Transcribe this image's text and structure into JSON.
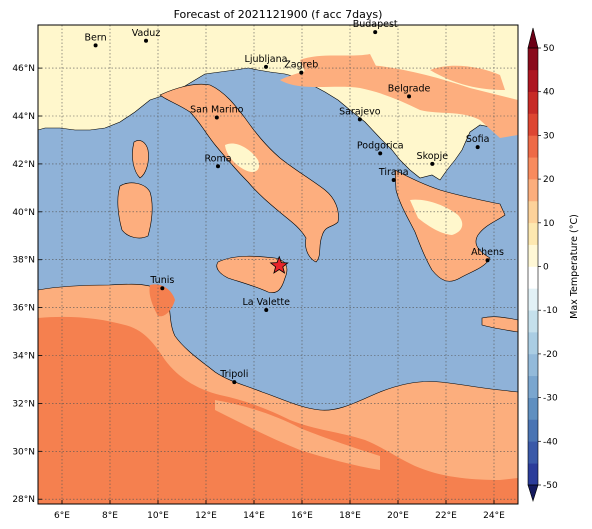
{
  "title": "Forecast of 2021121900 (f acc 7days)",
  "map": {
    "lon_range": [
      5,
      25
    ],
    "lat_range": [
      27.8,
      47.8
    ],
    "lon_ticks": [
      {
        "value": 6,
        "label": "6°E"
      },
      {
        "value": 8,
        "label": "8°E"
      },
      {
        "value": 10,
        "label": "10°E"
      },
      {
        "value": 12,
        "label": "12°E"
      },
      {
        "value": 14,
        "label": "14°E"
      },
      {
        "value": 16,
        "label": "16°E"
      },
      {
        "value": 18,
        "label": "18°E"
      },
      {
        "value": 20,
        "label": "20°E"
      },
      {
        "value": 22,
        "label": "22°E"
      },
      {
        "value": 24,
        "label": "24°E"
      }
    ],
    "lat_ticks": [
      {
        "value": 28,
        "label": "28°N"
      },
      {
        "value": 30,
        "label": "30°N"
      },
      {
        "value": 32,
        "label": "32°N"
      },
      {
        "value": 34,
        "label": "34°N"
      },
      {
        "value": 36,
        "label": "36°N"
      },
      {
        "value": 38,
        "label": "38°N"
      },
      {
        "value": 40,
        "label": "40°N"
      },
      {
        "value": 42,
        "label": "42°N"
      },
      {
        "value": 44,
        "label": "44°N"
      },
      {
        "value": 46,
        "label": "46°N"
      }
    ],
    "grid": true,
    "sea_color": "#8fb2d8",
    "cities": [
      {
        "name": "Bern",
        "lon": 7.4,
        "lat": 46.95
      },
      {
        "name": "Vaduz",
        "lon": 9.5,
        "lat": 47.14
      },
      {
        "name": "Budapest",
        "lon": 19.05,
        "lat": 47.5
      },
      {
        "name": "Ljubljana",
        "lon": 14.5,
        "lat": 46.05
      },
      {
        "name": "Zagreb",
        "lon": 15.97,
        "lat": 45.81
      },
      {
        "name": "Belgrade",
        "lon": 20.46,
        "lat": 44.82
      },
      {
        "name": "San Marino",
        "lon": 12.45,
        "lat": 43.94
      },
      {
        "name": "Sarajevo",
        "lon": 18.41,
        "lat": 43.86
      },
      {
        "name": "Sofia",
        "lon": 23.32,
        "lat": 42.7
      },
      {
        "name": "Podgorica",
        "lon": 19.26,
        "lat": 42.44
      },
      {
        "name": "Skopje",
        "lon": 21.43,
        "lat": 42.0
      },
      {
        "name": "Roma",
        "lon": 12.5,
        "lat": 41.9
      },
      {
        "name": "Tirana",
        "lon": 19.82,
        "lat": 41.33
      },
      {
        "name": "Athens",
        "lon": 23.73,
        "lat": 37.98
      },
      {
        "name": "Tunis",
        "lon": 10.18,
        "lat": 36.81
      },
      {
        "name": "La Valette",
        "lon": 14.51,
        "lat": 35.9
      },
      {
        "name": "Tripoli",
        "lon": 13.18,
        "lat": 32.89
      }
    ],
    "marker": {
      "type": "star",
      "lon": 15.05,
      "lat": 37.75,
      "color": "#e8232a"
    }
  },
  "colorbar": {
    "label": "Max Temperature (°C)",
    "ticks": [
      "-50",
      "-40",
      "-30",
      "-20",
      "-10",
      "0",
      "10",
      "20",
      "30",
      "40",
      "50"
    ],
    "levels": [
      -55,
      -50,
      -45,
      -40,
      -35,
      -30,
      -25,
      -20,
      -15,
      -10,
      -5,
      0,
      5,
      10,
      15,
      20,
      25,
      30,
      35,
      40,
      45,
      50,
      55
    ],
    "colors": [
      "#23237a",
      "#2b3c9a",
      "#3a59a8",
      "#4a74b3",
      "#5f8fc0",
      "#7aa6cf",
      "#93bada",
      "#aacde3",
      "#c5e0ec",
      "#e2f1f6",
      "#ffffff",
      "#fff8d6",
      "#fde8b0",
      "#fdd29a",
      "#fcae7d",
      "#f88b5e",
      "#ee6a47",
      "#dd4632",
      "#c72b27",
      "#ad1621",
      "#8a0b1c",
      "#6c0016"
    ],
    "extend": "both"
  }
}
